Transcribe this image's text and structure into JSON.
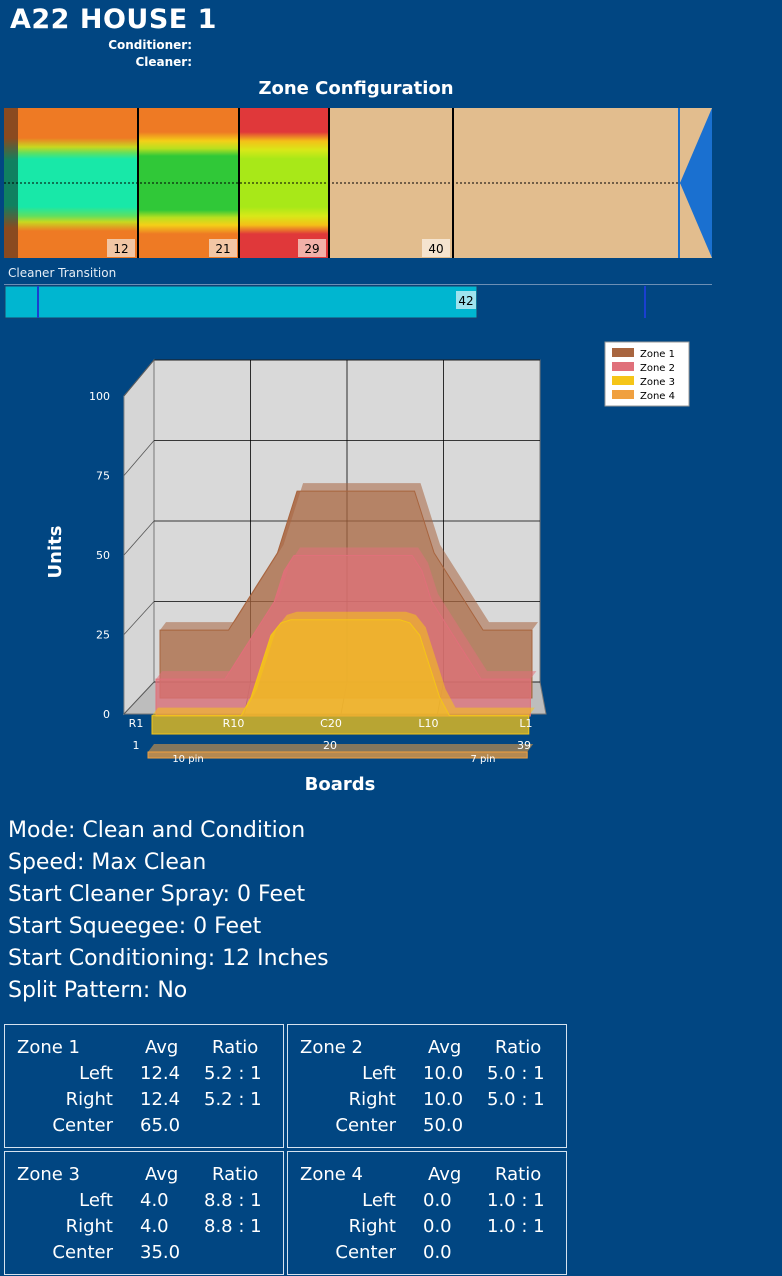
{
  "header": {
    "title": "A22 HOUSE 1",
    "conditioner_label": "Conditioner:",
    "cleaner_label": "Cleaner:"
  },
  "zone_config": {
    "title": "Zone Configuration",
    "markers": [
      "12",
      "21",
      "29",
      "40"
    ],
    "cleaner_label": "Cleaner Transition",
    "cleaner_value": "42",
    "cleaner_fraction": 0.54
  },
  "chart_data": {
    "type": "area",
    "ylabel": "Units",
    "xlabel": "Boards",
    "ylim": [
      0,
      100
    ],
    "yticks": [
      "0",
      "25",
      "50",
      "75",
      "100"
    ],
    "xticks": [
      "R1",
      "R10",
      "C20",
      "L10",
      "L1"
    ],
    "xsub": [
      "1",
      "20",
      "39"
    ],
    "pin_labels": [
      "10 pin",
      "7 pin"
    ],
    "x": [
      1,
      2,
      3,
      4,
      5,
      6,
      7,
      8,
      9,
      10,
      11,
      12,
      13,
      14,
      15,
      16,
      17,
      18,
      19,
      20,
      21,
      22,
      23,
      24,
      25,
      26,
      27,
      28,
      29,
      30,
      31,
      32,
      33,
      34,
      35,
      36,
      37,
      38,
      39
    ],
    "series": [
      {
        "name": "Zone 1",
        "color": "#a8653f",
        "values": [
          20,
          20,
          20,
          20,
          20,
          20,
          20,
          20,
          25,
          30,
          35,
          40,
          45,
          55,
          65,
          65,
          65,
          65,
          65,
          65,
          65,
          65,
          65,
          65,
          65,
          65,
          65,
          55,
          45,
          40,
          35,
          30,
          25,
          20,
          20,
          20,
          20,
          20,
          20
        ]
      },
      {
        "name": "Zone 2",
        "color": "#e0707a",
        "values": [
          10,
          10,
          10,
          10,
          10,
          10,
          10,
          10,
          15,
          20,
          25,
          30,
          35,
          45,
          50,
          50,
          50,
          50,
          50,
          50,
          50,
          50,
          50,
          50,
          50,
          50,
          50,
          45,
          35,
          30,
          25,
          20,
          15,
          10,
          10,
          10,
          10,
          10,
          10
        ]
      },
      {
        "name": "Zone 3",
        "color": "#f5c518",
        "values": [
          4,
          4,
          4,
          4,
          4,
          4,
          4,
          4,
          4,
          4,
          10,
          20,
          30,
          34,
          35,
          35,
          35,
          35,
          35,
          35,
          35,
          35,
          35,
          35,
          35,
          35,
          34,
          30,
          20,
          10,
          4,
          4,
          4,
          4,
          4,
          4,
          4,
          4,
          4
        ]
      },
      {
        "name": "Zone 4",
        "color": "#f0a040",
        "values": [
          0,
          0,
          0,
          0,
          0,
          0,
          0,
          0,
          0,
          0,
          0,
          0,
          0,
          0,
          0,
          0,
          0,
          0,
          0,
          0,
          0,
          0,
          0,
          0,
          0,
          0,
          0,
          0,
          0,
          0,
          0,
          0,
          0,
          0,
          0,
          0,
          0,
          0,
          0
        ]
      }
    ]
  },
  "info": {
    "mode": "Mode: Clean and Condition",
    "speed": "Speed: Max Clean",
    "spray": "Start Cleaner Spray: 0 Feet",
    "squeegee": "Start Squeegee: 0 Feet",
    "conditioning": "Start Conditioning: 12 Inches",
    "split": "Split Pattern: No"
  },
  "zones": [
    {
      "name": "Zone 1",
      "avg": "Avg",
      "ratio": "Ratio",
      "left": "Left",
      "right": "Right",
      "center": "Center",
      "left_avg": "12.4",
      "left_ratio": "5.2 : 1",
      "right_avg": "12.4",
      "right_ratio": "5.2 : 1",
      "center_avg": "65.0"
    },
    {
      "name": "Zone 2",
      "avg": "Avg",
      "ratio": "Ratio",
      "left": "Left",
      "right": "Right",
      "center": "Center",
      "left_avg": "10.0",
      "left_ratio": "5.0 : 1",
      "right_avg": "10.0",
      "right_ratio": "5.0 : 1",
      "center_avg": "50.0"
    },
    {
      "name": "Zone 3",
      "avg": "Avg",
      "ratio": "Ratio",
      "left": "Left",
      "right": "Right",
      "center": "Center",
      "left_avg": "4.0",
      "left_ratio": "8.8 : 1",
      "right_avg": "4.0",
      "right_ratio": "8.8 : 1",
      "center_avg": "35.0"
    },
    {
      "name": "Zone 4",
      "avg": "Avg",
      "ratio": "Ratio",
      "left": "Left",
      "right": "Right",
      "center": "Center",
      "left_avg": "0.0",
      "left_ratio": "1.0 : 1",
      "right_avg": "0.0",
      "right_ratio": "1.0 : 1",
      "center_avg": "0.0"
    }
  ]
}
